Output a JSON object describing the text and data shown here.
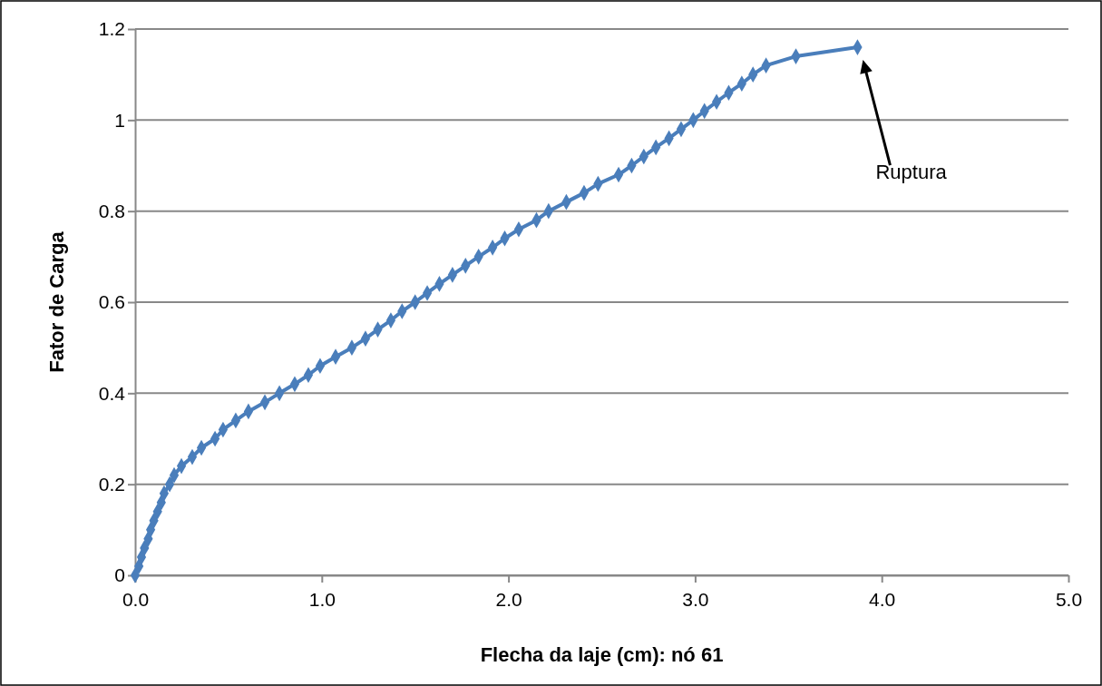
{
  "chart_data": {
    "type": "line",
    "xlabel": "Flecha da laje (cm): nó 61",
    "ylabel": "Fator de Carga",
    "xlim": [
      0,
      5
    ],
    "xticks": [
      {
        "value": 0,
        "label": "0.0"
      },
      {
        "value": 1,
        "label": "1.0"
      },
      {
        "value": 2,
        "label": "2.0"
      },
      {
        "value": 3,
        "label": "3.0"
      },
      {
        "value": 4,
        "label": "4.0"
      },
      {
        "value": 5,
        "label": "5.0"
      }
    ],
    "ylim": [
      0,
      1.2
    ],
    "yticks": [
      0,
      0.2,
      0.4,
      0.6,
      0.8,
      1,
      1.2
    ],
    "grid": "y",
    "marker": "diamond",
    "line_style": "solid",
    "annotations": [
      "Ruptura"
    ],
    "series": [
      {
        "color": "#4a7ebb",
        "x": [
          0,
          0.02,
          0.034,
          0.05,
          0.07,
          0.083,
          0.1,
          0.12,
          0.14,
          0.155,
          0.185,
          0.209,
          0.248,
          0.306,
          0.355,
          0.428,
          0.471,
          0.539,
          0.607,
          0.695,
          0.773,
          0.855,
          0.928,
          0.991,
          1.074,
          1.161,
          1.234,
          1.3,
          1.37,
          1.43,
          1.5,
          1.565,
          1.63,
          1.7,
          1.77,
          1.84,
          1.915,
          1.98,
          2.055,
          2.15,
          2.215,
          2.31,
          2.405,
          2.48,
          2.59,
          2.66,
          2.725,
          2.79,
          2.86,
          2.925,
          2.99,
          3.05,
          3.115,
          3.18,
          3.25,
          3.31,
          3.38,
          3.54,
          3.87
        ],
        "values": [
          0,
          0.02,
          0.04,
          0.06,
          0.08,
          0.1,
          0.12,
          0.14,
          0.16,
          0.18,
          0.2,
          0.22,
          0.24,
          0.26,
          0.28,
          0.3,
          0.32,
          0.34,
          0.36,
          0.38,
          0.4,
          0.42,
          0.44,
          0.46,
          0.48,
          0.5,
          0.52,
          0.54,
          0.56,
          0.58,
          0.6,
          0.62,
          0.64,
          0.66,
          0.68,
          0.7,
          0.72,
          0.74,
          0.76,
          0.78,
          0.8,
          0.82,
          0.84,
          0.86,
          0.88,
          0.9,
          0.92,
          0.94,
          0.96,
          0.98,
          1,
          1.02,
          1.04,
          1.06,
          1.08,
          1.1,
          1.12,
          1.14,
          1.16
        ]
      }
    ]
  }
}
